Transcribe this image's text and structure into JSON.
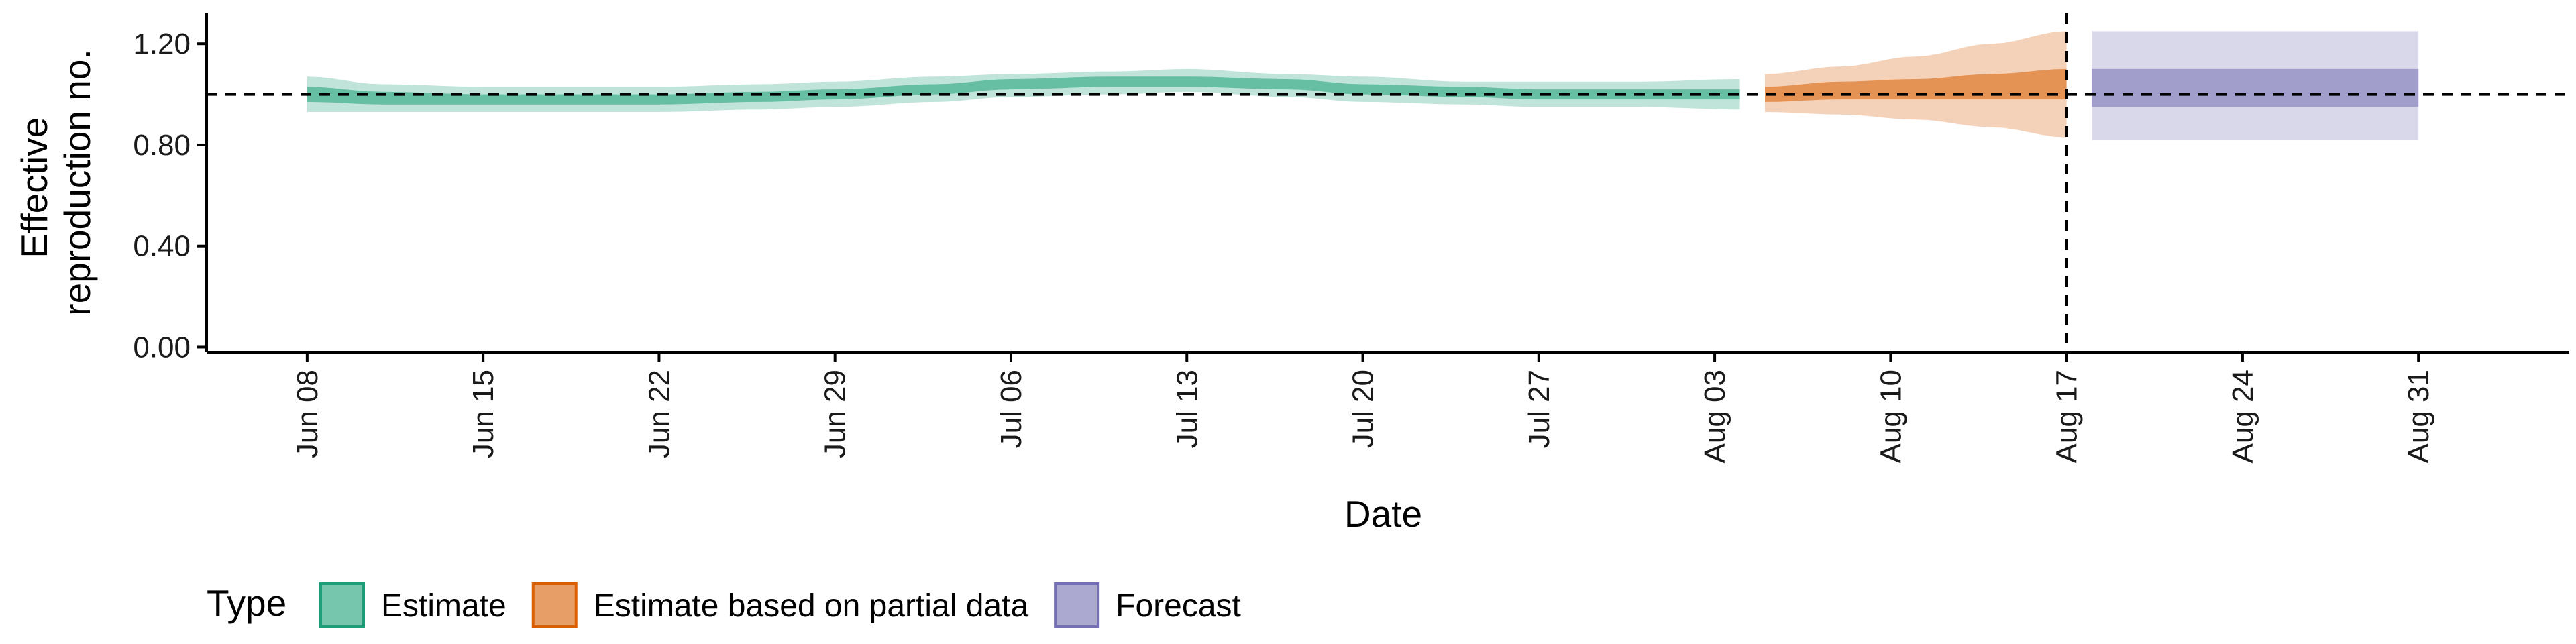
{
  "chart_data": {
    "type": "area",
    "title": "",
    "xlabel": "Date",
    "ylabel": [
      "Effective",
      "reproduction no."
    ],
    "x_start": "2020-06-08",
    "xlim": [
      "2020-06-04",
      "2020-09-06"
    ],
    "ylim": [
      -0.02,
      1.32
    ],
    "y_ticks": [
      0.0,
      0.4,
      0.8,
      1.2
    ],
    "y_tick_labels": [
      "0.00",
      "0.40",
      "0.80",
      "1.20"
    ],
    "x_ticks": [
      "2020-06-08",
      "2020-06-15",
      "2020-06-22",
      "2020-06-29",
      "2020-07-06",
      "2020-07-13",
      "2020-07-20",
      "2020-07-27",
      "2020-08-03",
      "2020-08-10",
      "2020-08-17",
      "2020-08-24",
      "2020-08-31"
    ],
    "x_tick_labels": [
      "Jun 08",
      "Jun 15",
      "Jun 22",
      "Jun 29",
      "Jul 06",
      "Jul 13",
      "Jul 20",
      "Jul 27",
      "Aug 03",
      "Aug 10",
      "Aug 17",
      "Aug 24",
      "Aug 31"
    ],
    "reference_line_y": 1.0,
    "vertical_line_x": "2020-08-17",
    "legend": {
      "title": "Type",
      "position": "bottom-left",
      "entries": [
        {
          "label": "Estimate",
          "color": "#1b9e77"
        },
        {
          "label": "Estimate based on partial data",
          "color": "#d95f02"
        },
        {
          "label": "Forecast",
          "color": "#7570b3"
        }
      ]
    },
    "series": [
      {
        "name": "Estimate",
        "color": "#1b9e77",
        "date_range": [
          "2020-06-08",
          "2020-08-04"
        ],
        "points": [
          {
            "x": "2020-06-08",
            "y": 1.0,
            "lo50": 0.97,
            "hi50": 1.03,
            "lo90": 0.93,
            "hi90": 1.07
          },
          {
            "x": "2020-06-11",
            "y": 0.99,
            "lo50": 0.96,
            "hi50": 1.01,
            "lo90": 0.93,
            "hi90": 1.04
          },
          {
            "x": "2020-06-15",
            "y": 0.98,
            "lo50": 0.96,
            "hi50": 1.0,
            "lo90": 0.93,
            "hi90": 1.03
          },
          {
            "x": "2020-06-19",
            "y": 0.98,
            "lo50": 0.96,
            "hi50": 1.0,
            "lo90": 0.93,
            "hi90": 1.03
          },
          {
            "x": "2020-06-22",
            "y": 0.98,
            "lo50": 0.96,
            "hi50": 1.0,
            "lo90": 0.93,
            "hi90": 1.03
          },
          {
            "x": "2020-06-26",
            "y": 0.99,
            "lo50": 0.97,
            "hi50": 1.01,
            "lo90": 0.94,
            "hi90": 1.04
          },
          {
            "x": "2020-06-29",
            "y": 1.0,
            "lo50": 0.98,
            "hi50": 1.02,
            "lo90": 0.95,
            "hi90": 1.05
          },
          {
            "x": "2020-07-03",
            "y": 1.02,
            "lo50": 1.0,
            "hi50": 1.04,
            "lo90": 0.97,
            "hi90": 1.07
          },
          {
            "x": "2020-07-06",
            "y": 1.04,
            "lo50": 1.02,
            "hi50": 1.06,
            "lo90": 0.99,
            "hi90": 1.08
          },
          {
            "x": "2020-07-10",
            "y": 1.05,
            "lo50": 1.03,
            "hi50": 1.07,
            "lo90": 1.0,
            "hi90": 1.09
          },
          {
            "x": "2020-07-13",
            "y": 1.05,
            "lo50": 1.03,
            "hi50": 1.07,
            "lo90": 1.01,
            "hi90": 1.1
          },
          {
            "x": "2020-07-17",
            "y": 1.04,
            "lo50": 1.02,
            "hi50": 1.06,
            "lo90": 0.99,
            "hi90": 1.08
          },
          {
            "x": "2020-07-20",
            "y": 1.02,
            "lo50": 1.0,
            "hi50": 1.04,
            "lo90": 0.97,
            "hi90": 1.07
          },
          {
            "x": "2020-07-24",
            "y": 1.01,
            "lo50": 0.99,
            "hi50": 1.03,
            "lo90": 0.96,
            "hi90": 1.05
          },
          {
            "x": "2020-07-27",
            "y": 1.0,
            "lo50": 0.98,
            "hi50": 1.02,
            "lo90": 0.95,
            "hi90": 1.05
          },
          {
            "x": "2020-07-31",
            "y": 1.0,
            "lo50": 0.98,
            "hi50": 1.02,
            "lo90": 0.95,
            "hi90": 1.05
          },
          {
            "x": "2020-08-04",
            "y": 1.0,
            "lo50": 0.98,
            "hi50": 1.02,
            "lo90": 0.94,
            "hi90": 1.06
          }
        ]
      },
      {
        "name": "Estimate based on partial data",
        "color": "#d95f02",
        "date_range": [
          "2020-08-05",
          "2020-08-17"
        ],
        "points": [
          {
            "x": "2020-08-05",
            "y": 1.0,
            "lo50": 0.97,
            "hi50": 1.03,
            "lo90": 0.93,
            "hi90": 1.08
          },
          {
            "x": "2020-08-08",
            "y": 1.01,
            "lo50": 0.98,
            "hi50": 1.05,
            "lo90": 0.92,
            "hi90": 1.11
          },
          {
            "x": "2020-08-11",
            "y": 1.02,
            "lo50": 0.98,
            "hi50": 1.06,
            "lo90": 0.9,
            "hi90": 1.15
          },
          {
            "x": "2020-08-14",
            "y": 1.03,
            "lo50": 0.98,
            "hi50": 1.08,
            "lo90": 0.87,
            "hi90": 1.2
          },
          {
            "x": "2020-08-17",
            "y": 1.04,
            "lo50": 0.98,
            "hi50": 1.1,
            "lo90": 0.83,
            "hi90": 1.25
          }
        ]
      },
      {
        "name": "Forecast",
        "color": "#7570b3",
        "date_range": [
          "2020-08-18",
          "2020-08-31"
        ],
        "points": [
          {
            "x": "2020-08-18",
            "y": 1.02,
            "lo50": 0.95,
            "hi50": 1.1,
            "lo90": 0.82,
            "hi90": 1.25
          },
          {
            "x": "2020-08-31",
            "y": 1.02,
            "lo50": 0.95,
            "hi50": 1.1,
            "lo90": 0.82,
            "hi90": 1.25
          }
        ]
      }
    ]
  }
}
